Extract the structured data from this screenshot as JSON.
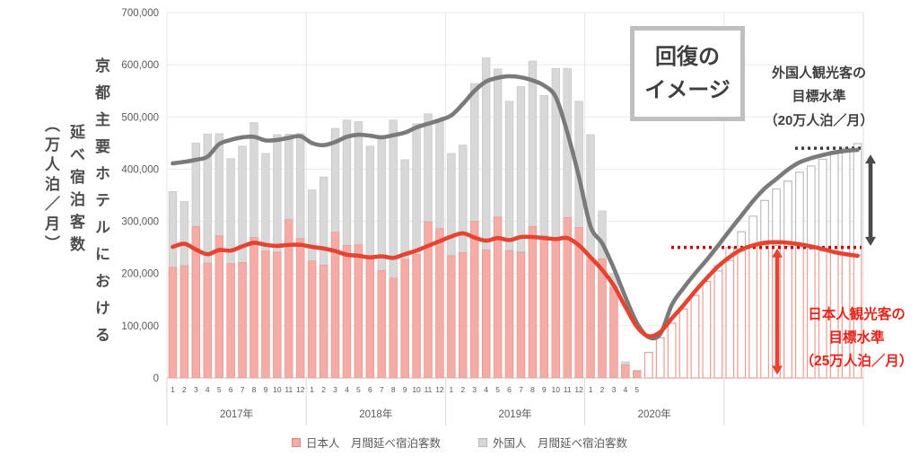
{
  "axis_titles": {
    "line1": "京都主要ホテルにおける",
    "line2": "延べ宿泊客数",
    "line3": "（万人泊／月）"
  },
  "annotations": {
    "recovery_box": [
      "回復の",
      "イメージ"
    ],
    "foreign_target": [
      "外国人観光客の",
      "目標水準",
      "（20万人泊／月）"
    ],
    "japanese_target": [
      "日本人観光客の",
      "目標水準",
      "（25万人泊／月）"
    ]
  },
  "legend": {
    "items": [
      {
        "label": "日本人　月間延べ宿泊客数",
        "color": "#f6aca6"
      },
      {
        "label": "外国人　月間延べ宿泊客数",
        "color": "#d8d8d8"
      }
    ]
  },
  "colors": {
    "japanese_bar": "#f6aca6",
    "japanese_bar_stroke": "#e89b92",
    "foreign_bar": "#d8d8d8",
    "foreign_bar_stroke": "#c9c9c9",
    "projected_japanese_outline": "#ec9c92",
    "projected_foreign_outline": "#bdbdbd",
    "japanese_line": "#e74331",
    "foreign_line": "#7a7a7a",
    "japanese_target_dotted": "#c00000",
    "foreign_target_dotted": "#3b3b3b",
    "japanese_arrow": "#e74331",
    "foreign_arrow": "#4a4a4a",
    "accent_text_red": "#e3251b",
    "grid": "#e8e8e8",
    "axis": "#bfbfbf",
    "tick_text": "#595959"
  },
  "chart_data": {
    "type": "bar",
    "subtype": "stacked-bars-with-smoothed-lines",
    "title": "",
    "xlabel": "",
    "ylabel": "京都主要ホテルにおける延べ宿泊客数（万人泊／月）",
    "ylim": [
      0,
      700000
    ],
    "y_tick_step": 100000,
    "y_tick_labels": [
      "0",
      "100,000",
      "200,000",
      "300,000",
      "400,000",
      "500,000",
      "600,000",
      "700,000"
    ],
    "grid": "horizontal",
    "legend_position": "bottom",
    "month_labels": [
      "1",
      "2",
      "3",
      "4",
      "5",
      "6",
      "7",
      "8",
      "9",
      "10",
      "11",
      "12",
      "1",
      "2",
      "3",
      "4",
      "5",
      "6",
      "7",
      "8",
      "9",
      "10",
      "11",
      "12",
      "1",
      "2",
      "3",
      "4",
      "5",
      "6",
      "7",
      "8",
      "9",
      "10",
      "11",
      "12",
      "1",
      "2",
      "3",
      "4",
      "5",
      "",
      "",
      "",
      "",
      "",
      "",
      "",
      "",
      "",
      "",
      "",
      "",
      "",
      "",
      "",
      "",
      "",
      "",
      ""
    ],
    "year_groups": [
      {
        "label": "2017年",
        "start": 0,
        "span": 12
      },
      {
        "label": "2018年",
        "start": 12,
        "span": 12
      },
      {
        "label": "2019年",
        "start": 24,
        "span": 12
      },
      {
        "label": "2020年",
        "start": 36,
        "span": 12
      },
      {
        "label": "",
        "start": 48,
        "span": 12
      }
    ],
    "projected_from_index": 41,
    "series": [
      {
        "name": "日本人　月間延べ宿泊客数",
        "role": "japanese_bars",
        "values": [
          212000,
          215000,
          290000,
          220000,
          272000,
          219000,
          221000,
          269000,
          243000,
          241000,
          303000,
          267000,
          224000,
          216000,
          279000,
          254000,
          255000,
          229000,
          206000,
          191000,
          227000,
          237000,
          299000,
          286000,
          234000,
          240000,
          300000,
          245000,
          308000,
          244000,
          241000,
          290000,
          272000,
          263000,
          307000,
          288000,
          229000,
          228000,
          174000,
          25000,
          13000,
          49000,
          77000,
          105000,
          132000,
          158000,
          185000,
          205000,
          225000,
          243000,
          255000,
          255000,
          254000,
          252000,
          250000,
          247000,
          243000,
          240000,
          237000,
          235000
        ]
      },
      {
        "name": "外国人　月間延べ宿泊客数 (積み上げ上端=合計)",
        "role": "total_bars",
        "values": [
          357000,
          338000,
          450000,
          467000,
          468000,
          420000,
          444000,
          489000,
          430000,
          466000,
          467000,
          468000,
          360000,
          385000,
          478000,
          494000,
          491000,
          444000,
          462000,
          494000,
          418000,
          487000,
          506000,
          495000,
          430000,
          446000,
          564000,
          613000,
          592000,
          530000,
          558000,
          607000,
          541000,
          593000,
          593000,
          530000,
          466000,
          320000,
          200000,
          31000,
          15000,
          49000,
          77000,
          105000,
          132000,
          158000,
          185000,
          215000,
          250000,
          280000,
          310000,
          340000,
          362000,
          377000,
          394000,
          406000,
          419000,
          429000,
          440000,
          449000
        ]
      },
      {
        "name": "日本人トレンド線",
        "role": "japanese_line",
        "values": [
          251000,
          257000,
          246000,
          237000,
          245000,
          244000,
          252000,
          259000,
          255000,
          253000,
          255000,
          255000,
          251000,
          248000,
          243000,
          236000,
          234000,
          231000,
          233000,
          230000,
          237000,
          244000,
          253000,
          262000,
          271000,
          277000,
          269000,
          263000,
          268000,
          264000,
          270000,
          270000,
          268000,
          266000,
          268000,
          254000,
          231000,
          207000,
          177000,
          136000,
          98000,
          80000,
          88000,
          114000,
          139000,
          166000,
          191000,
          214000,
          232000,
          246000,
          254000,
          259000,
          260000,
          259000,
          256000,
          252000,
          247000,
          241000,
          237000,
          234000
        ]
      },
      {
        "name": "外国人（合計）トレンド線",
        "role": "total_line",
        "values": [
          411000,
          414000,
          418000,
          424000,
          448000,
          456000,
          461000,
          462000,
          455000,
          456000,
          460000,
          463000,
          450000,
          446000,
          452000,
          462000,
          466000,
          464000,
          461000,
          465000,
          470000,
          480000,
          487000,
          494000,
          503000,
          525000,
          550000,
          568000,
          575000,
          578000,
          576000,
          570000,
          560000,
          538000,
          470000,
          385000,
          290000,
          258000,
          210000,
          155000,
          105000,
          78000,
          84000,
          140000,
          172000,
          200000,
          226000,
          254000,
          283000,
          311000,
          339000,
          363000,
          381000,
          399000,
          413000,
          421000,
          427000,
          432000,
          435000,
          437000
        ]
      }
    ],
    "targets": {
      "japanese_target_value": 250000,
      "japanese_target_label": "日本人観光客の目標水準（25万人泊／月）",
      "foreign_target_value": 200000,
      "foreign_target_label": "外国人観光客の目標水準（20万人泊／月）",
      "foreign_dotted_line_total": 440000
    }
  }
}
